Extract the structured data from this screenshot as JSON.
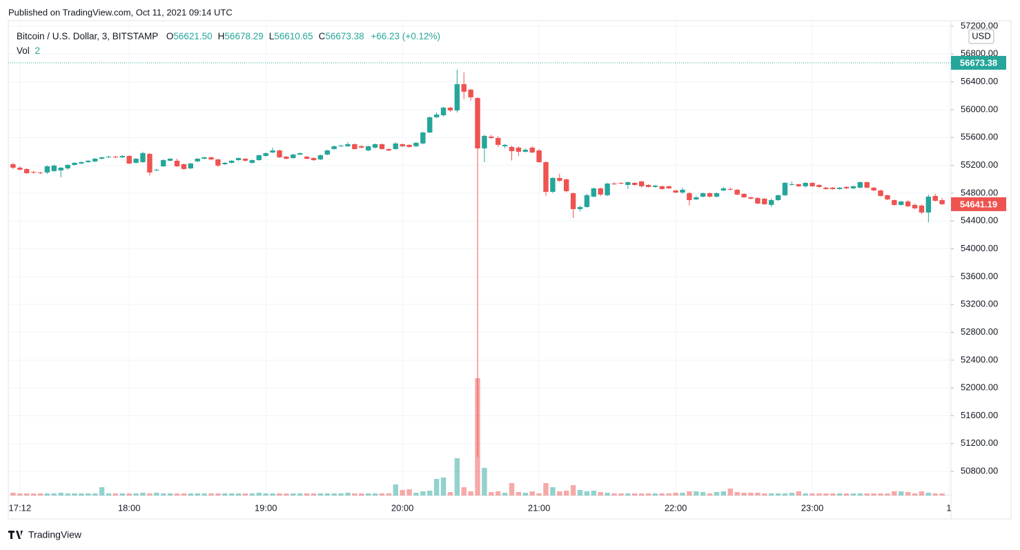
{
  "published": "Published on TradingView.com, Oct 11, 2021 09:14 UTC",
  "brand": "TradingView",
  "chart_data": {
    "type": "candlestick",
    "title": "Bitcoin / U.S. Dollar, 3, BITSTAMP",
    "legend_values": [
      {
        "key": "O",
        "text": "56621.50"
      },
      {
        "key": "H",
        "text": "56678.29"
      },
      {
        "key": "L",
        "text": "56610.65"
      },
      {
        "key": "C",
        "text": "56673.38"
      }
    ],
    "change": "+66.23 (+0.12%)",
    "volume_title": "Vol",
    "volume_length": "2",
    "currency": "USD",
    "up_color": "#26a69a",
    "down_color": "#ef5350",
    "grid": true,
    "price_labels": [
      {
        "value": 56673.38,
        "label": "56673.38",
        "color": "#26a69a"
      },
      {
        "value": 54641.19,
        "label": "54641.19",
        "color": "#ef5350"
      }
    ],
    "xlim": [
      -0.7,
      137.3
    ],
    "xticks": [
      {
        "value": 1,
        "label": "17:12"
      },
      {
        "value": 17,
        "label": "18:00"
      },
      {
        "value": 37,
        "label": "19:00"
      },
      {
        "value": 57,
        "label": "20:00"
      },
      {
        "value": 77,
        "label": "21:00"
      },
      {
        "value": 97,
        "label": "22:00"
      },
      {
        "value": 117,
        "label": "23:00"
      },
      {
        "value": 137,
        "label": "1"
      }
    ],
    "ylim": [
      50454,
      57279
    ],
    "yticks": [
      {
        "value": 57200,
        "label": "57200.00"
      },
      {
        "value": 56800,
        "label": "56800.00"
      },
      {
        "value": 56400,
        "label": "56400.00"
      },
      {
        "value": 56000,
        "label": "56000.00"
      },
      {
        "value": 55600,
        "label": "55600.00"
      },
      {
        "value": 55200,
        "label": "55200.00"
      },
      {
        "value": 54800,
        "label": "54800.00"
      },
      {
        "value": 54400,
        "label": "54400.00"
      },
      {
        "value": 54000,
        "label": "54000.00"
      },
      {
        "value": 53600,
        "label": "53600.00"
      },
      {
        "value": 53200,
        "label": "53200.00"
      },
      {
        "value": 52800,
        "label": "52800.00"
      },
      {
        "value": 52400,
        "label": "52400.00"
      },
      {
        "value": 52000,
        "label": "52000.00"
      },
      {
        "value": 51600,
        "label": "51600.00"
      },
      {
        "value": 51200,
        "label": "51200.00"
      },
      {
        "value": 50800,
        "label": "50800.00"
      }
    ],
    "ohlc": [
      [
        55216,
        55236,
        55146,
        55166
      ],
      [
        55166,
        55186,
        55127,
        55137
      ],
      [
        55147,
        55160,
        55077,
        55087
      ],
      [
        55107,
        55117,
        55077,
        55097
      ],
      [
        55097,
        55107,
        55077,
        55087
      ],
      [
        55097,
        55200,
        55077,
        55186
      ],
      [
        55117,
        55210,
        55107,
        55196
      ],
      [
        55127,
        55176,
        55028,
        55166
      ],
      [
        55156,
        55216,
        55137,
        55206
      ],
      [
        55206,
        55246,
        55196,
        55236
      ],
      [
        55226,
        55256,
        55216,
        55246
      ],
      [
        55246,
        55275,
        55236,
        55266
      ],
      [
        55256,
        55305,
        55246,
        55295
      ],
      [
        55295,
        55325,
        55285,
        55315
      ],
      [
        55315,
        55335,
        55305,
        55325
      ],
      [
        55325,
        55335,
        55305,
        55315
      ],
      [
        55315,
        55345,
        55305,
        55335
      ],
      [
        55335,
        55345,
        55216,
        55226
      ],
      [
        55236,
        55305,
        55226,
        55295
      ],
      [
        55246,
        55395,
        55236,
        55375
      ],
      [
        55365,
        55375,
        55050,
        55097
      ],
      [
        55127,
        55147,
        55117,
        55137
      ],
      [
        55186,
        55285,
        55176,
        55275
      ],
      [
        55266,
        55305,
        55256,
        55295
      ],
      [
        55266,
        55295,
        55176,
        55186
      ],
      [
        55216,
        55226,
        55137,
        55147
      ],
      [
        55156,
        55236,
        55147,
        55226
      ],
      [
        55256,
        55305,
        55246,
        55295
      ],
      [
        55295,
        55325,
        55285,
        55315
      ],
      [
        55315,
        55325,
        55275,
        55285
      ],
      [
        55285,
        55295,
        55176,
        55196
      ],
      [
        55216,
        55246,
        55206,
        55236
      ],
      [
        55236,
        55275,
        55226,
        55266
      ],
      [
        55275,
        55315,
        55266,
        55305
      ],
      [
        55295,
        55305,
        55256,
        55266
      ],
      [
        55236,
        55285,
        55226,
        55275
      ],
      [
        55275,
        55355,
        55266,
        55345
      ],
      [
        55335,
        55385,
        55325,
        55375
      ],
      [
        55385,
        55454,
        55375,
        55414
      ],
      [
        55414,
        55424,
        55305,
        55315
      ],
      [
        55325,
        55335,
        55285,
        55295
      ],
      [
        55305,
        55365,
        55295,
        55355
      ],
      [
        55355,
        55385,
        55345,
        55375
      ],
      [
        55325,
        55335,
        55285,
        55295
      ],
      [
        55305,
        55315,
        55265,
        55275
      ],
      [
        55285,
        55355,
        55275,
        55345
      ],
      [
        55355,
        55424,
        55345,
        55414
      ],
      [
        55434,
        55484,
        55424,
        55474
      ],
      [
        55474,
        55494,
        55464,
        55484
      ],
      [
        55474,
        55534,
        55464,
        55504
      ],
      [
        55504,
        55514,
        55424,
        55434
      ],
      [
        55474,
        55494,
        55444,
        55454
      ],
      [
        55414,
        55484,
        55404,
        55474
      ],
      [
        55454,
        55514,
        55444,
        55504
      ],
      [
        55504,
        55514,
        55424,
        55434
      ],
      [
        55434,
        55444,
        55404,
        55414
      ],
      [
        55434,
        55534,
        55424,
        55514
      ],
      [
        55504,
        55514,
        55464,
        55474
      ],
      [
        55494,
        55504,
        55454,
        55464
      ],
      [
        55474,
        55534,
        55464,
        55524
      ],
      [
        55514,
        55682,
        55504,
        55672
      ],
      [
        55672,
        55901,
        55662,
        55891
      ],
      [
        55891,
        55960,
        55880,
        55930
      ],
      [
        55920,
        56040,
        55900,
        56029
      ],
      [
        56029,
        56040,
        55970,
        55990
      ],
      [
        55990,
        56575,
        55960,
        56367
      ],
      [
        56367,
        56535,
        56150,
        56258
      ],
      [
        56287,
        56300,
        56130,
        56178
      ],
      [
        56168,
        56178,
        51010,
        55444
      ],
      [
        55444,
        55640,
        55246,
        55623
      ],
      [
        55613,
        55640,
        55583,
        55593
      ],
      [
        55593,
        55620,
        55464,
        55494
      ],
      [
        55474,
        55504,
        55444,
        55494
      ],
      [
        55464,
        55484,
        55270,
        55404
      ],
      [
        55454,
        55474,
        55335,
        55395
      ],
      [
        55395,
        55444,
        55385,
        55424
      ],
      [
        55454,
        55474,
        55375,
        55385
      ],
      [
        55414,
        55434,
        55236,
        55246
      ],
      [
        55246,
        55256,
        54760,
        54819
      ],
      [
        54819,
        55030,
        54800,
        55018
      ],
      [
        55018,
        55080,
        54960,
        54978
      ],
      [
        54998,
        55010,
        54810,
        54829
      ],
      [
        54799,
        54810,
        54442,
        54571
      ],
      [
        54571,
        54620,
        54540,
        54601
      ],
      [
        54601,
        54790,
        54590,
        54770
      ],
      [
        54750,
        54880,
        54740,
        54869
      ],
      [
        54869,
        54880,
        54760,
        54780
      ],
      [
        54770,
        54948,
        54760,
        54938
      ],
      [
        54938,
        54958,
        54918,
        54928
      ],
      [
        54948,
        54958,
        54928,
        54938
      ],
      [
        54918,
        54968,
        54860,
        54958
      ],
      [
        54948,
        54958,
        54908,
        54918
      ],
      [
        54968,
        54978,
        54880,
        54899
      ],
      [
        54918,
        54928,
        54880,
        54889
      ],
      [
        54889,
        54918,
        54880,
        54908
      ],
      [
        54899,
        54908,
        54850,
        54859
      ],
      [
        54899,
        54908,
        54860,
        54869
      ],
      [
        54839,
        54850,
        54800,
        54809
      ],
      [
        54809,
        54880,
        54790,
        54849
      ],
      [
        54799,
        54820,
        54620,
        54700
      ],
      [
        54710,
        54760,
        54700,
        54740
      ],
      [
        54750,
        54810,
        54740,
        54799
      ],
      [
        54799,
        54810,
        54740,
        54750
      ],
      [
        54750,
        54810,
        54740,
        54799
      ],
      [
        54839,
        54889,
        54830,
        54869
      ],
      [
        54859,
        54880,
        54840,
        54849
      ],
      [
        54849,
        54860,
        54770,
        54780
      ],
      [
        54790,
        54800,
        54730,
        54740
      ],
      [
        54740,
        54750,
        54710,
        54720
      ],
      [
        54730,
        54740,
        54640,
        54651
      ],
      [
        54720,
        54730,
        54630,
        54641
      ],
      [
        54631,
        54720,
        54600,
        54700
      ],
      [
        54700,
        54780,
        54690,
        54770
      ],
      [
        54770,
        54958,
        54760,
        54948
      ],
      [
        54918,
        54968,
        54910,
        54928
      ],
      [
        54928,
        54938,
        54889,
        54899
      ],
      [
        54899,
        54958,
        54880,
        54948
      ],
      [
        54948,
        54958,
        54889,
        54899
      ],
      [
        54918,
        54928,
        54880,
        54889
      ],
      [
        54879,
        54889,
        54850,
        54859
      ],
      [
        54879,
        54889,
        54850,
        54859
      ],
      [
        54859,
        54889,
        54850,
        54879
      ],
      [
        54889,
        54899,
        54860,
        54869
      ],
      [
        54869,
        54908,
        54860,
        54899
      ],
      [
        54879,
        54968,
        54870,
        54958
      ],
      [
        54958,
        54968,
        54870,
        54879
      ],
      [
        54879,
        54889,
        54830,
        54839
      ],
      [
        54839,
        54850,
        54750,
        54760
      ],
      [
        54770,
        54780,
        54700,
        54710
      ],
      [
        54700,
        54710,
        54620,
        54631
      ],
      [
        54631,
        54690,
        54620,
        54680
      ],
      [
        54680,
        54700,
        54600,
        54611
      ],
      [
        54631,
        54650,
        54570,
        54581
      ],
      [
        54621,
        54640,
        54500,
        54522
      ],
      [
        54522,
        54780,
        54380,
        54750
      ],
      [
        54760,
        54790,
        54680,
        54690
      ],
      [
        54700,
        54730,
        54630,
        54641
      ]
    ],
    "volume": [
      4,
      3,
      3,
      3,
      3,
      3,
      3,
      4,
      3,
      3,
      3,
      3,
      3,
      12,
      3,
      3,
      3,
      3,
      3,
      4,
      3,
      4,
      3,
      3,
      3,
      3,
      3,
      3,
      3,
      3,
      3,
      3,
      3,
      3,
      3,
      3,
      4,
      3,
      3,
      3,
      3,
      3,
      3,
      3,
      3,
      3,
      3,
      3,
      3,
      4,
      3,
      3,
      3,
      3,
      3,
      3,
      16,
      8,
      9,
      4,
      6,
      7,
      24,
      26,
      5,
      54,
      12,
      6,
      170,
      40,
      5,
      6,
      4,
      18,
      5,
      4,
      6,
      3,
      18,
      12,
      6,
      7,
      15,
      8,
      6,
      7,
      5,
      4,
      3,
      3,
      3,
      3,
      3,
      3,
      3,
      3,
      3,
      4,
      4,
      6,
      6,
      5,
      3,
      5,
      6,
      10,
      5,
      4,
      4,
      4,
      3,
      3,
      3,
      3,
      4,
      6,
      3,
      3,
      3,
      3,
      3,
      3,
      3,
      3,
      3,
      3,
      3,
      3,
      3,
      6,
      6,
      5,
      3,
      6,
      4,
      3,
      3
    ]
  }
}
